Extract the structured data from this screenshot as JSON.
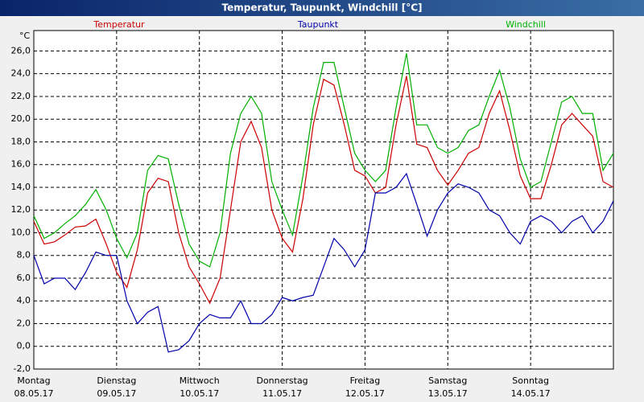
{
  "chart_data": {
    "type": "line",
    "title": "Temperatur, Taupunkt, Windchill [°C]",
    "y_unit": "°C",
    "x": [
      0,
      0.125,
      0.25,
      0.375,
      0.5,
      0.625,
      0.75,
      0.875,
      1,
      1.125,
      1.25,
      1.375,
      1.5,
      1.625,
      1.75,
      1.875,
      2,
      2.125,
      2.25,
      2.375,
      2.5,
      2.625,
      2.75,
      2.875,
      3,
      3.125,
      3.25,
      3.375,
      3.5,
      3.625,
      3.75,
      3.875,
      4,
      4.125,
      4.25,
      4.375,
      4.5,
      4.625,
      4.75,
      4.875,
      5,
      5.125,
      5.25,
      5.375,
      5.5,
      5.625,
      5.75,
      5.875,
      6,
      6.125,
      6.25,
      6.375,
      6.5,
      6.625,
      6.75,
      6.875,
      7
    ],
    "xlim": [
      0,
      7
    ],
    "xticks": [
      {
        "value": 0,
        "label": "Montag",
        "date": "08.05.17"
      },
      {
        "value": 1,
        "label": "Dienstag",
        "date": "09.05.17"
      },
      {
        "value": 2,
        "label": "Mittwoch",
        "date": "10.05.17"
      },
      {
        "value": 3,
        "label": "Donnerstag",
        "date": "11.05.17"
      },
      {
        "value": 4,
        "label": "Freitag",
        "date": "12.05.17"
      },
      {
        "value": 5,
        "label": "Samstag",
        "date": "13.05.17"
      },
      {
        "value": 6,
        "label": "Sonntag",
        "date": "14.05.17"
      }
    ],
    "ylim": [
      -2,
      27.8
    ],
    "yticks": [
      {
        "value": -2,
        "label": "-2,0"
      },
      {
        "value": 0,
        "label": "0,0"
      },
      {
        "value": 2,
        "label": "2,0"
      },
      {
        "value": 4,
        "label": "4,0"
      },
      {
        "value": 6,
        "label": "6,0"
      },
      {
        "value": 8,
        "label": "8,0"
      },
      {
        "value": 10,
        "label": "10,0"
      },
      {
        "value": 12,
        "label": "12,0"
      },
      {
        "value": 14,
        "label": "14,0"
      },
      {
        "value": 16,
        "label": "16,0"
      },
      {
        "value": 18,
        "label": "18,0"
      },
      {
        "value": 20,
        "label": "20,0"
      },
      {
        "value": 22,
        "label": "22,0"
      },
      {
        "value": 24,
        "label": "24,0"
      },
      {
        "value": 26,
        "label": "26,0"
      }
    ],
    "grid": true,
    "series": [
      {
        "name": "Temperatur",
        "color": "#cc0000",
        "values": [
          11,
          9,
          9.2,
          9.8,
          10.5,
          10.6,
          11.2,
          9,
          6.5,
          5.2,
          8.5,
          13.5,
          14.8,
          14.5,
          10,
          7,
          5.5,
          3.8,
          6,
          12,
          18,
          19.8,
          17.5,
          12,
          9.5,
          8.3,
          13,
          19.5,
          23.5,
          23,
          19.5,
          15.5,
          15,
          13.5,
          14,
          19.5,
          23.8,
          17.8,
          17.5,
          15.5,
          14.2,
          15.5,
          17,
          17.5,
          20.5,
          22.5,
          19,
          15,
          13,
          13,
          16,
          19.5,
          20.5,
          19.5,
          18.5,
          14.5,
          14
        ]
      },
      {
        "name": "Taupunkt",
        "color": "#0000aa",
        "values": [
          8,
          5.5,
          6,
          6,
          5,
          6.5,
          8.3,
          8,
          8,
          4,
          2,
          3,
          3.5,
          -0.5,
          -0.3,
          0.5,
          2,
          2.8,
          2.5,
          2.5,
          4,
          2,
          2,
          2.8,
          4.3,
          4,
          4.3,
          4.5,
          7,
          9.5,
          8.5,
          7,
          8.5,
          13.5,
          13.5,
          14,
          15.2,
          12.5,
          9.7,
          12,
          13.5,
          14.3,
          14,
          13.5,
          12,
          11.5,
          10,
          9,
          11,
          11.5,
          11,
          10,
          11,
          11.5,
          10,
          11,
          12.8
        ]
      },
      {
        "name": "Windchill",
        "color": "#00b000",
        "values": [
          11.5,
          9.5,
          10,
          10.8,
          11.5,
          12.5,
          13.8,
          12,
          9.5,
          7.8,
          10,
          15.5,
          16.8,
          16.5,
          12.5,
          9,
          7.5,
          7,
          10,
          17,
          20.5,
          22,
          20.5,
          14.5,
          12,
          9.8,
          15,
          21,
          25,
          25,
          21,
          17,
          15.5,
          14.5,
          15.5,
          21,
          25.8,
          19.5,
          19.5,
          17.5,
          17,
          17.5,
          19,
          19.5,
          22,
          24.3,
          21,
          16.5,
          14,
          14.5,
          18,
          21.5,
          22,
          20.5,
          20.5,
          15.5,
          17
        ]
      }
    ]
  }
}
